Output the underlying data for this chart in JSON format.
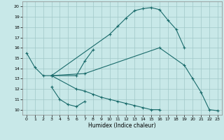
{
  "xlabel": "Humidex (Indice chaleur)",
  "background_color": "#c8e8e8",
  "grid_color": "#a0c8c8",
  "line_color": "#1a6b6b",
  "xlim": [
    -0.5,
    23.5
  ],
  "ylim": [
    9.5,
    20.5
  ],
  "yticks": [
    10,
    11,
    12,
    13,
    14,
    15,
    16,
    17,
    18,
    19,
    20
  ],
  "xticks": [
    0,
    1,
    2,
    3,
    4,
    5,
    6,
    7,
    8,
    9,
    10,
    11,
    12,
    13,
    14,
    15,
    16,
    17,
    18,
    19,
    20,
    21,
    22,
    23
  ],
  "line1_x": [
    0,
    1,
    2,
    3,
    10,
    11,
    12,
    13,
    14,
    15,
    16,
    17,
    18,
    19
  ],
  "line1_y": [
    15.5,
    14.1,
    13.3,
    13.3,
    17.3,
    18.1,
    18.9,
    19.6,
    19.8,
    19.9,
    19.7,
    18.7,
    17.8,
    16.0
  ],
  "line2_x": [
    3,
    4,
    5,
    6,
    7
  ],
  "line2_y": [
    12.2,
    11.0,
    10.5,
    10.3,
    10.8
  ],
  "line3_x": [
    3,
    6,
    7,
    8
  ],
  "line3_y": [
    13.3,
    13.3,
    14.7,
    15.8
  ],
  "line4_x": [
    3,
    7,
    16,
    19,
    20,
    21,
    22,
    23
  ],
  "line4_y": [
    13.3,
    13.5,
    16.0,
    14.3,
    13.0,
    11.7,
    10.0,
    9.9
  ],
  "line5_x": [
    3,
    6,
    7,
    8,
    9,
    10,
    11,
    12,
    13,
    14,
    15,
    16
  ],
  "line5_y": [
    13.3,
    12.0,
    11.8,
    11.5,
    11.2,
    11.0,
    10.8,
    10.6,
    10.4,
    10.2,
    10.0,
    10.0
  ]
}
